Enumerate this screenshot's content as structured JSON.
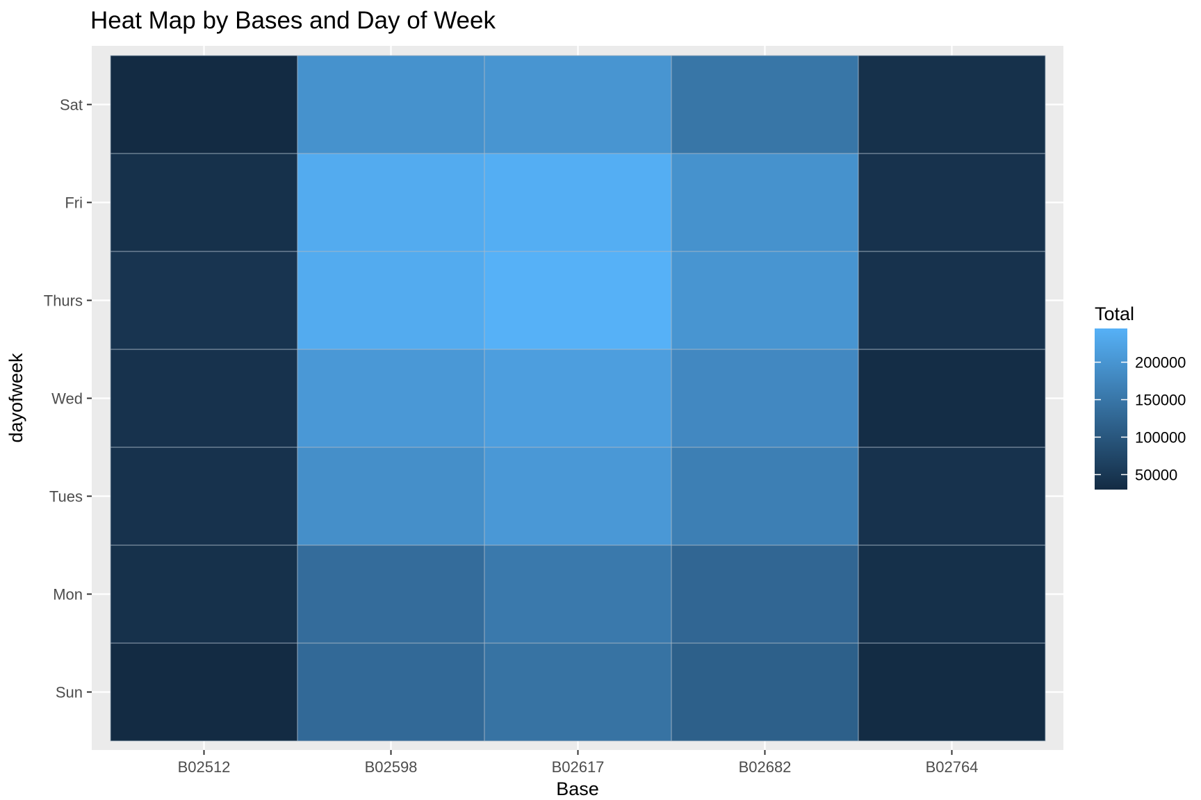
{
  "chart_data": {
    "type": "heatmap",
    "title": "Heat Map by Bases and Day of Week",
    "xlabel": "Base",
    "ylabel": "dayofweek",
    "x_categories": [
      "B02512",
      "B02598",
      "B02617",
      "B02682",
      "B02764"
    ],
    "y_categories": [
      "Sun",
      "Mon",
      "Tues",
      "Wed",
      "Thurs",
      "Fri",
      "Sat"
    ],
    "values": [
      [
        30000,
        130000,
        145000,
        115000,
        31000
      ],
      [
        40000,
        135000,
        155000,
        125000,
        38000
      ],
      [
        42000,
        190000,
        205000,
        165000,
        42000
      ],
      [
        42000,
        205000,
        215000,
        180000,
        33000
      ],
      [
        45000,
        235000,
        245000,
        200000,
        42000
      ],
      [
        40000,
        235000,
        240000,
        195000,
        42000
      ],
      [
        30000,
        195000,
        200000,
        150000,
        40000
      ]
    ],
    "legend": {
      "title": "Total",
      "min": 30000,
      "max": 245000,
      "breaks": [
        50000,
        100000,
        150000,
        200000
      ],
      "break_labels": [
        "50000",
        "100000",
        "150000",
        "200000"
      ],
      "low_color": "#132B43",
      "high_color": "#56B1F7",
      "placement": "right"
    },
    "panel_background": "#EBEBEB",
    "grid": true
  }
}
